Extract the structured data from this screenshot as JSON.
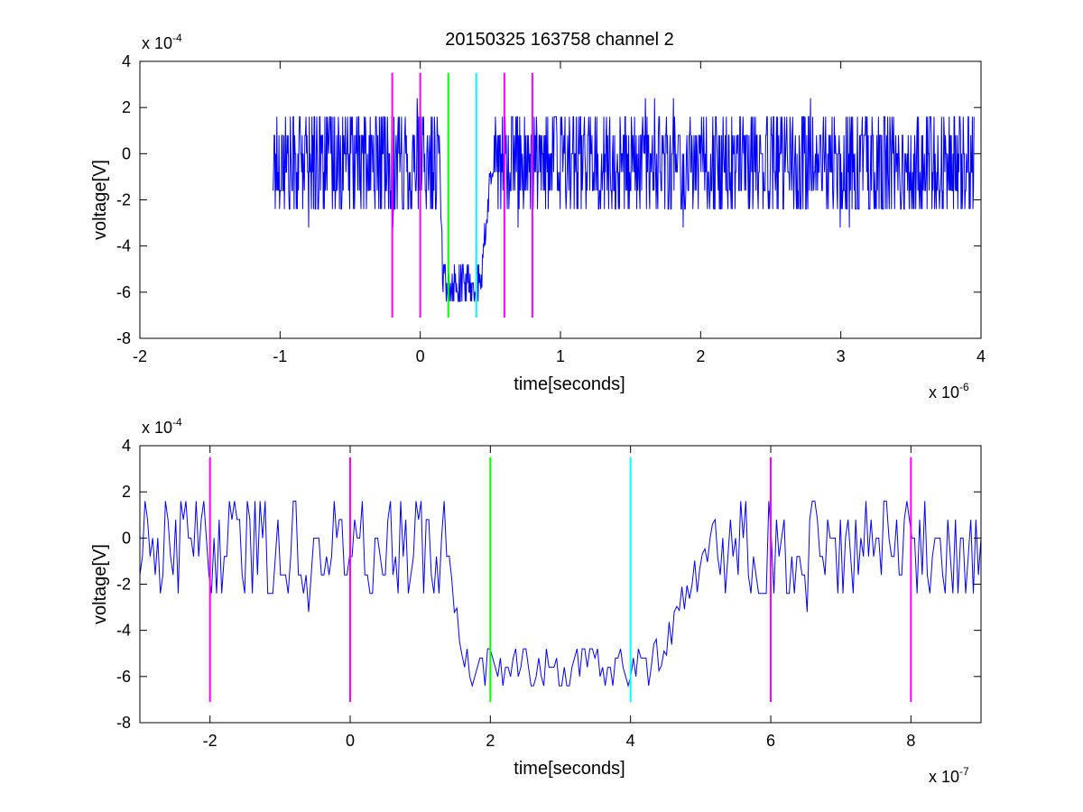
{
  "figure_title": "20150325 163758 channel 2",
  "colors": {
    "signal": "#0000ff",
    "magenta": "#ff00ff",
    "green": "#00ff00",
    "cyan": "#00ffff",
    "axes": "#000000",
    "background": "#ffffff"
  },
  "chart_data": [
    {
      "type": "line",
      "title": "20150325 163758 channel 2",
      "xlabel": "time[seconds]",
      "ylabel": "voltage[V]",
      "xlim": [
        -2e-06,
        4e-06
      ],
      "ylim": [
        -0.0008,
        0.0004
      ],
      "x_scale_label": {
        "base": "x 10",
        "exp": "-6"
      },
      "y_scale_label": {
        "base": "x 10",
        "exp": "-4"
      },
      "x_ticks": [
        -2e-06,
        -1e-06,
        0,
        1e-06,
        2e-06,
        3e-06,
        4e-06
      ],
      "x_tick_labels": [
        "-2",
        "-1",
        "0",
        "1",
        "2",
        "3",
        "4"
      ],
      "y_ticks": [
        -0.0008,
        -0.0006,
        -0.0004,
        -0.0002,
        0,
        0.0002,
        0.0004
      ],
      "y_tick_labels": [
        "-8",
        "-6",
        "-4",
        "-2",
        "0",
        "2",
        "4"
      ],
      "grid": false,
      "series": [
        {
          "style": "noisy-step-signal",
          "x_range": [
            -1.05e-06,
            3.95e-06
          ],
          "baseline": 0,
          "noise_levels": [
            -0.00024,
            -0.00016,
            -8e-05,
            0,
            8e-05,
            0.00016
          ],
          "dip_start": 1.4e-07,
          "dip_low_start": 1.6e-07,
          "dip_low_end": 4.3e-07,
          "dip_end": 5.2e-07,
          "dip_level": -0.00056
        }
      ],
      "vlines": [
        {
          "x": -2e-07,
          "y0": -0.00071,
          "y1": 0.00035,
          "color": "magenta"
        },
        {
          "x": 0,
          "y0": -0.00071,
          "y1": 0.00035,
          "color": "magenta"
        },
        {
          "x": 2e-07,
          "y0": -0.00071,
          "y1": 0.00035,
          "color": "green"
        },
        {
          "x": 4e-07,
          "y0": -0.00071,
          "y1": 0.00035,
          "color": "cyan"
        },
        {
          "x": 6e-07,
          "y0": -0.00071,
          "y1": 0.00035,
          "color": "magenta"
        },
        {
          "x": 8e-07,
          "y0": -0.00071,
          "y1": 0.00035,
          "color": "magenta"
        }
      ]
    },
    {
      "type": "line",
      "xlabel": "time[seconds]",
      "ylabel": "voltage[V]",
      "xlim": [
        -3e-07,
        9e-07
      ],
      "ylim": [
        -0.0008,
        0.0004
      ],
      "x_scale_label": {
        "base": "x 10",
        "exp": "-7"
      },
      "y_scale_label": {
        "base": "x 10",
        "exp": "-4"
      },
      "x_ticks": [
        -2e-07,
        0,
        2e-07,
        4e-07,
        6e-07,
        8e-07
      ],
      "x_tick_labels": [
        "-2",
        "0",
        "2",
        "4",
        "6",
        "8"
      ],
      "y_ticks": [
        -0.0008,
        -0.0006,
        -0.0004,
        -0.0002,
        0,
        0.0002,
        0.0004
      ],
      "y_tick_labels": [
        "-8",
        "-6",
        "-4",
        "-2",
        "0",
        "2",
        "4"
      ],
      "grid": false,
      "series": [
        {
          "style": "noisy-step-signal",
          "x_range": [
            -3e-07,
            9e-07
          ],
          "baseline": 0,
          "noise_levels": [
            -0.00024,
            -0.00016,
            -8e-05,
            0,
            8e-05,
            0.00016
          ],
          "dip_start": 1.4e-07,
          "dip_low_start": 1.6e-07,
          "dip_low_end": 4.3e-07,
          "dip_end": 5.2e-07,
          "dip_level": -0.00056
        }
      ],
      "vlines": [
        {
          "x": -2e-07,
          "y0": -0.00071,
          "y1": 0.00035,
          "color": "magenta"
        },
        {
          "x": 0,
          "y0": -0.00071,
          "y1": 0.00035,
          "color": "magenta"
        },
        {
          "x": 2e-07,
          "y0": -0.00071,
          "y1": 0.00035,
          "color": "green"
        },
        {
          "x": 4e-07,
          "y0": -0.00071,
          "y1": 0.00035,
          "color": "cyan"
        },
        {
          "x": 6e-07,
          "y0": -0.00071,
          "y1": 0.00035,
          "color": "magenta"
        },
        {
          "x": 8e-07,
          "y0": -0.00071,
          "y1": 0.00035,
          "color": "magenta"
        }
      ]
    }
  ]
}
